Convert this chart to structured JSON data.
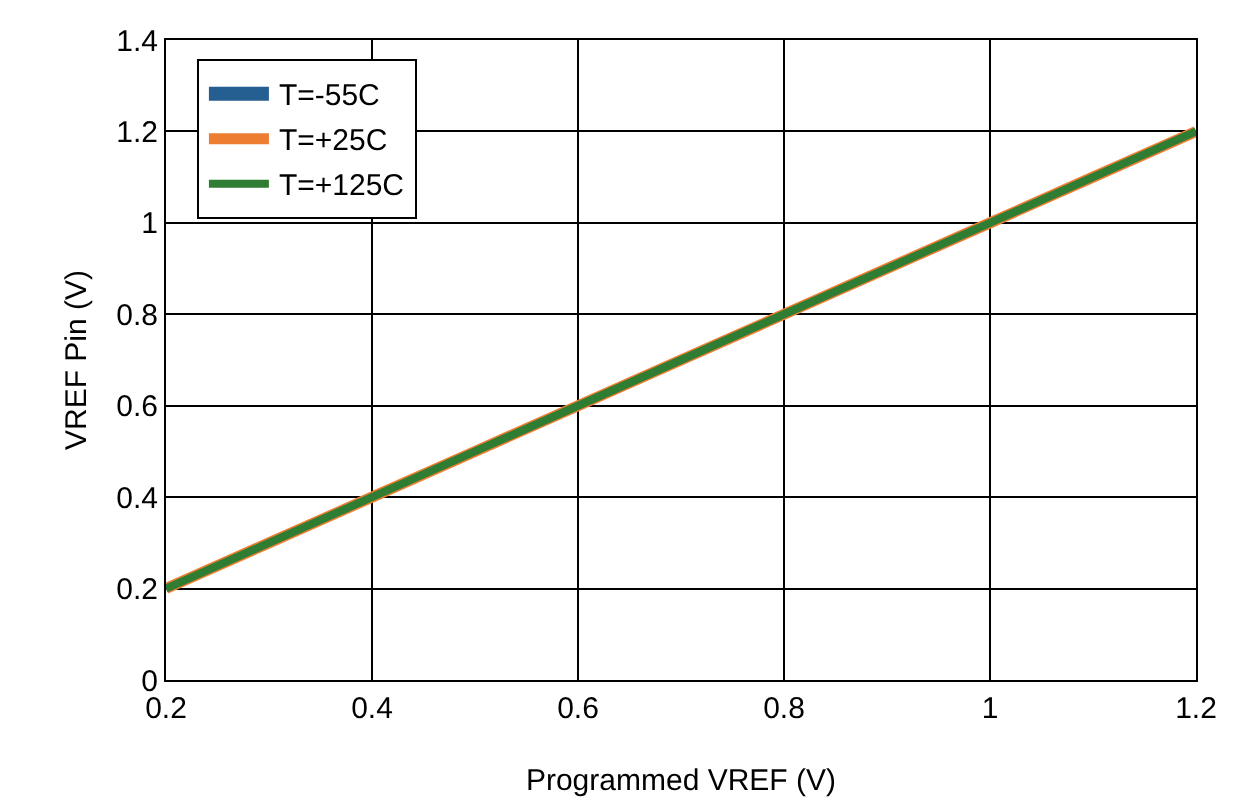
{
  "chart_data": {
    "type": "line",
    "xlabel": "Programmed VREF (V)",
    "ylabel": "VREF Pin (V)",
    "x": [
      0.2,
      0.3,
      0.4,
      0.5,
      0.6,
      0.7,
      0.8,
      0.9,
      1.0,
      1.1,
      1.2
    ],
    "series": [
      {
        "name": "T=-55C",
        "color": "#255e91",
        "values": [
          null,
          null,
          null,
          null,
          null,
          null,
          null,
          null,
          null,
          null,
          null
        ]
      },
      {
        "name": "T=+25C",
        "color": "#ed7d31",
        "values": [
          0.2,
          0.3,
          0.4,
          0.5,
          0.6,
          0.7,
          0.8,
          0.9,
          1.0,
          1.1,
          1.2
        ]
      },
      {
        "name": "T=+125C",
        "color": "#2e7d32",
        "values": [
          0.2,
          0.3,
          0.4,
          0.5,
          0.6,
          0.7,
          0.8,
          0.9,
          1.0,
          1.1,
          1.2
        ]
      }
    ],
    "xlim": [
      0.2,
      1.2
    ],
    "xticks": [
      0.2,
      0.4,
      0.6,
      0.8,
      1,
      1.2
    ],
    "ylim": [
      0,
      1.4
    ],
    "yticks": [
      0,
      0.2,
      0.4,
      0.6,
      0.8,
      1,
      1.2,
      1.4
    ],
    "grid": true,
    "legend": "top left",
    "marker": "none",
    "line_style": "solid"
  }
}
